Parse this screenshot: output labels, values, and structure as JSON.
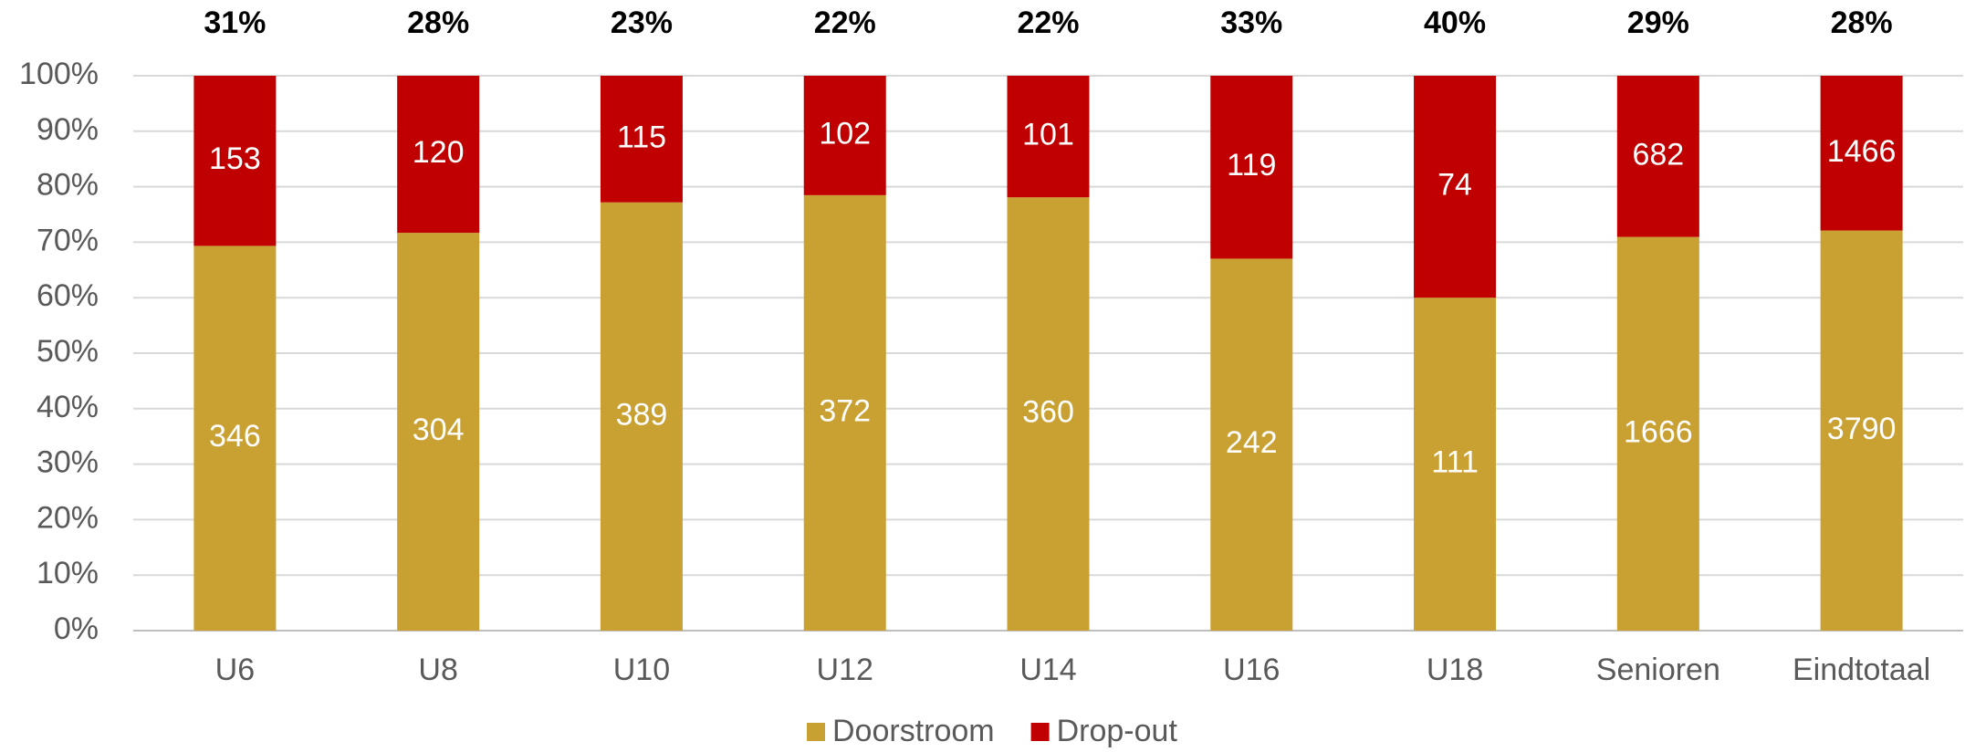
{
  "chart_data": {
    "type": "stacked_bar_percent",
    "categories": [
      "U6",
      "U8",
      "U10",
      "U12",
      "U14",
      "U16",
      "U18",
      "Senioren",
      "Eindtotaal"
    ],
    "series": [
      {
        "name": "Doorstroom",
        "color": "#c9a032",
        "values": [
          346,
          304,
          389,
          372,
          360,
          242,
          111,
          1666,
          3790
        ]
      },
      {
        "name": "Drop-out",
        "color": "#c00000",
        "values": [
          153,
          120,
          115,
          102,
          101,
          119,
          74,
          682,
          1466
        ]
      }
    ],
    "dropout_percent": [
      31,
      28,
      23,
      22,
      22,
      33,
      40,
      29,
      28
    ],
    "dropout_percent_labels": [
      "31%",
      "28%",
      "23%",
      "22%",
      "22%",
      "33%",
      "40%",
      "29%",
      "28%"
    ],
    "ylim": [
      0,
      100
    ],
    "yticks": [
      {
        "value": 0,
        "label": "0%"
      },
      {
        "value": 10,
        "label": "10%"
      },
      {
        "value": 20,
        "label": "20%"
      },
      {
        "value": 30,
        "label": "30%"
      },
      {
        "value": 40,
        "label": "40%"
      },
      {
        "value": 50,
        "label": "50%"
      },
      {
        "value": 60,
        "label": "60%"
      },
      {
        "value": 70,
        "label": "70%"
      },
      {
        "value": 80,
        "label": "80%"
      },
      {
        "value": 90,
        "label": "90%"
      },
      {
        "value": 100,
        "label": "100%"
      }
    ],
    "grid": true,
    "legend": "bottom"
  }
}
